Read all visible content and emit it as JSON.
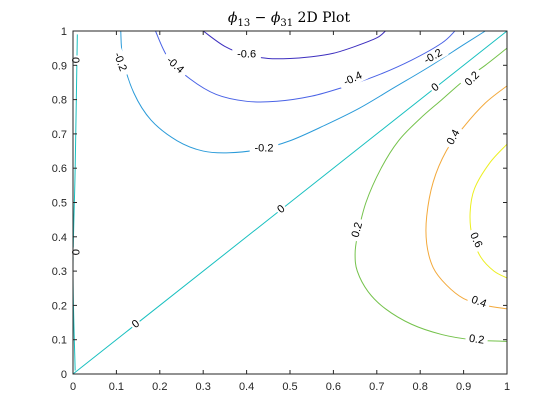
{
  "chart_data": {
    "type": "contour",
    "title": {
      "phi": "ϕ",
      "sub1": "13",
      "minus": " − ",
      "sub2": "31",
      "rest": " 2D Plot"
    },
    "xlim": [
      0,
      1
    ],
    "ylim": [
      0,
      1
    ],
    "xticks": [
      "0",
      "0.1",
      "0.2",
      "0.3",
      "0.4",
      "0.5",
      "0.6",
      "0.7",
      "0.8",
      "0.9",
      "1"
    ],
    "yticks": [
      "0",
      "0.1",
      "0.2",
      "0.3",
      "0.4",
      "0.5",
      "0.6",
      "0.7",
      "0.8",
      "0.9",
      "1"
    ],
    "grid": false,
    "colors": {
      "-0.6": "#3d2fbf",
      "-0.4": "#4a63e6",
      "-0.2": "#2b9bd9",
      "0": "#19c0c0",
      "0.2": "#74c24b",
      "0.4": "#f3a93b",
      "0.6": "#ecef21"
    },
    "contours": [
      {
        "level": "0",
        "color_key": "0",
        "points": [
          [
            0,
            0
          ],
          [
            1,
            1
          ]
        ]
      },
      {
        "level": "0",
        "color_key": "0",
        "points": [
          [
            0.01,
            0.99
          ],
          [
            0.005,
            0.6
          ],
          [
            0,
            0.3
          ],
          [
            0.005,
            0.01
          ]
        ]
      },
      {
        "level": "-0.6",
        "color_key": "-0.6",
        "points": [
          [
            0.3,
            1.0
          ],
          [
            0.35,
            0.955
          ],
          [
            0.4,
            0.93
          ],
          [
            0.45,
            0.92
          ],
          [
            0.5,
            0.92
          ],
          [
            0.55,
            0.925
          ],
          [
            0.6,
            0.935
          ],
          [
            0.65,
            0.955
          ],
          [
            0.7,
            0.98
          ],
          [
            0.72,
            1.0
          ]
        ]
      },
      {
        "level": "-0.4",
        "color_key": "-0.4",
        "points": [
          [
            0.19,
            1.0
          ],
          [
            0.22,
            0.92
          ],
          [
            0.27,
            0.86
          ],
          [
            0.33,
            0.815
          ],
          [
            0.4,
            0.795
          ],
          [
            0.47,
            0.795
          ],
          [
            0.55,
            0.81
          ],
          [
            0.62,
            0.835
          ],
          [
            0.7,
            0.87
          ],
          [
            0.78,
            0.915
          ],
          [
            0.85,
            0.965
          ],
          [
            0.88,
            1.0
          ]
        ]
      },
      {
        "level": "-0.2",
        "color_key": "-0.2",
        "points": [
          [
            0.11,
            1.0
          ],
          [
            0.115,
            0.92
          ],
          [
            0.14,
            0.82
          ],
          [
            0.18,
            0.74
          ],
          [
            0.24,
            0.68
          ],
          [
            0.3,
            0.65
          ],
          [
            0.36,
            0.645
          ],
          [
            0.43,
            0.655
          ],
          [
            0.5,
            0.68
          ],
          [
            0.58,
            0.725
          ],
          [
            0.66,
            0.775
          ],
          [
            0.74,
            0.835
          ],
          [
            0.82,
            0.895
          ],
          [
            0.9,
            0.96
          ],
          [
            0.95,
            1.0
          ]
        ]
      },
      {
        "level": "0.2",
        "color_key": "0.2",
        "points": [
          [
            1.0,
            0.95
          ],
          [
            0.95,
            0.9
          ],
          [
            0.9,
            0.855
          ],
          [
            0.85,
            0.8
          ],
          [
            0.8,
            0.745
          ],
          [
            0.75,
            0.68
          ],
          [
            0.71,
            0.6
          ],
          [
            0.675,
            0.5
          ],
          [
            0.655,
            0.4
          ],
          [
            0.65,
            0.35
          ],
          [
            0.655,
            0.3
          ],
          [
            0.68,
            0.24
          ],
          [
            0.72,
            0.19
          ],
          [
            0.78,
            0.145
          ],
          [
            0.85,
            0.115
          ],
          [
            0.92,
            0.1
          ],
          [
            1.0,
            0.095
          ]
        ]
      },
      {
        "level": "0.4",
        "color_key": "0.4",
        "points": [
          [
            1.0,
            0.84
          ],
          [
            0.95,
            0.79
          ],
          [
            0.9,
            0.72
          ],
          [
            0.86,
            0.65
          ],
          [
            0.83,
            0.56
          ],
          [
            0.815,
            0.46
          ],
          [
            0.815,
            0.38
          ],
          [
            0.83,
            0.31
          ],
          [
            0.86,
            0.26
          ],
          [
            0.9,
            0.22
          ],
          [
            0.95,
            0.2
          ],
          [
            1.0,
            0.19
          ]
        ]
      },
      {
        "level": "0.6",
        "color_key": "0.6",
        "points": [
          [
            1.0,
            0.67
          ],
          [
            0.96,
            0.615
          ],
          [
            0.925,
            0.54
          ],
          [
            0.915,
            0.47
          ],
          [
            0.92,
            0.4
          ],
          [
            0.94,
            0.34
          ],
          [
            0.97,
            0.3
          ],
          [
            1.0,
            0.28
          ]
        ]
      }
    ],
    "labels": [
      {
        "text": "0",
        "x": 0.48,
        "y": 0.48,
        "color_key": "0",
        "angle": -38
      },
      {
        "text": "0",
        "x": 0.145,
        "y": 0.145,
        "color_key": "0",
        "angle": -38
      },
      {
        "text": "0",
        "x": 0.835,
        "y": 0.835,
        "color_key": "0",
        "angle": -38
      },
      {
        "text": "0",
        "x": 0.005,
        "y": 0.915,
        "color_key": "0",
        "angle": 90
      },
      {
        "text": "0",
        "x": 0.005,
        "y": 0.355,
        "color_key": "0",
        "angle": 90
      },
      {
        "text": "-0.6",
        "x": 0.4,
        "y": 0.932,
        "color_key": "-0.6",
        "angle": 0
      },
      {
        "text": "-0.4",
        "x": 0.235,
        "y": 0.9,
        "color_key": "-0.4",
        "angle": 42
      },
      {
        "text": "-0.4",
        "x": 0.645,
        "y": 0.86,
        "color_key": "-0.4",
        "angle": -25
      },
      {
        "text": "-0.2",
        "x": 0.108,
        "y": 0.91,
        "color_key": "-0.2",
        "angle": 70
      },
      {
        "text": "-0.2",
        "x": 0.44,
        "y": 0.657,
        "color_key": "-0.2",
        "angle": 0
      },
      {
        "text": "-0.2",
        "x": 0.83,
        "y": 0.925,
        "color_key": "-0.2",
        "angle": -30
      },
      {
        "text": "0.2",
        "x": 0.655,
        "y": 0.42,
        "color_key": "0.2",
        "angle": -75
      },
      {
        "text": "0.2",
        "x": 0.92,
        "y": 0.86,
        "color_key": "0.2",
        "angle": -45
      },
      {
        "text": "0.2",
        "x": 0.93,
        "y": 0.1,
        "color_key": "0.2",
        "angle": 8
      },
      {
        "text": "0.4",
        "x": 0.877,
        "y": 0.69,
        "color_key": "0.4",
        "angle": -62
      },
      {
        "text": "0.4",
        "x": 0.935,
        "y": 0.21,
        "color_key": "0.4",
        "angle": 20
      },
      {
        "text": "0.6",
        "x": 0.928,
        "y": 0.39,
        "color_key": "0.6",
        "angle": 65
      }
    ]
  }
}
